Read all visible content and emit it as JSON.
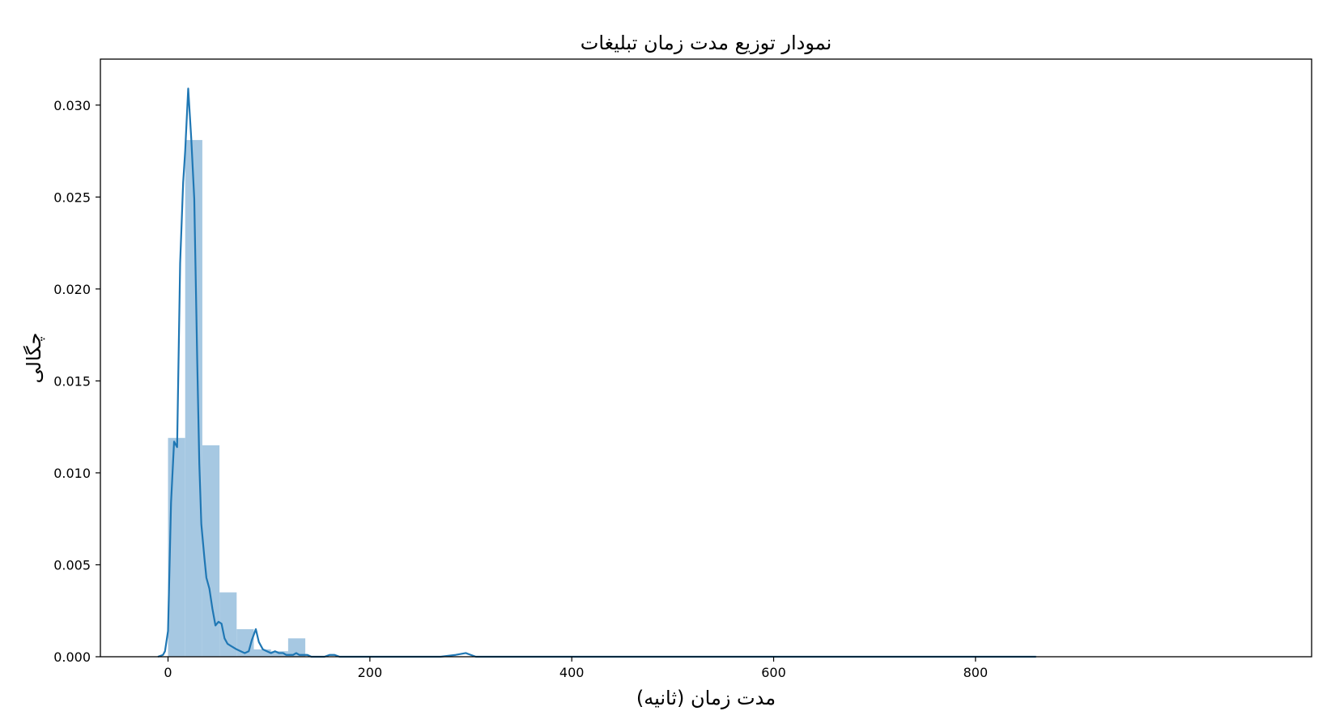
{
  "chart_data": {
    "type": "histogram",
    "title": "نمودار توزیع مدت زمان تبلیغات",
    "xlabel": "مدت زمان (ثانیه)",
    "ylabel": "چگالی",
    "xlim": [
      -67,
      1133
    ],
    "ylim": [
      0,
      0.0325
    ],
    "xticks": [
      0,
      200,
      400,
      600,
      800
    ],
    "yticks": [
      0.0,
      0.005,
      0.01,
      0.015,
      0.02,
      0.025,
      0.03
    ],
    "ytick_labels": [
      "0.000",
      "0.005",
      "0.010",
      "0.015",
      "0.020",
      "0.025",
      "0.030"
    ],
    "xtick_labels": [
      "0",
      "200",
      "400",
      "600",
      "800"
    ],
    "grid": false,
    "colors": {
      "bars": "#a6c8e2",
      "kde": "#1f77b4"
    },
    "histogram": {
      "bin_edges": [
        0,
        17,
        34,
        51,
        68,
        85,
        102,
        119,
        136
      ],
      "density": [
        0.0119,
        0.0281,
        0.0115,
        0.0035,
        0.0015,
        0.0004,
        0.0003,
        0.001
      ]
    },
    "kde": {
      "x": [
        -10,
        -5,
        -3,
        0,
        3,
        6,
        9,
        12,
        15,
        17,
        20,
        23,
        26,
        29,
        31,
        33,
        36,
        38,
        41,
        44,
        47,
        50,
        53,
        56,
        59,
        62,
        65,
        68,
        72,
        76,
        80,
        83,
        87,
        90,
        94,
        98,
        102,
        106,
        110,
        114,
        117,
        120,
        122,
        124,
        127,
        130,
        134,
        138,
        142,
        146,
        150,
        155,
        160,
        165,
        170,
        175,
        178,
        182,
        186,
        190,
        200,
        210,
        230,
        250,
        270,
        285,
        295,
        300,
        305,
        310,
        330,
        350,
        400,
        500,
        600,
        700,
        800,
        860
      ],
      "y": [
        0.0,
        0.0001,
        0.0003,
        0.0014,
        0.0084,
        0.0117,
        0.0114,
        0.0214,
        0.0258,
        0.0275,
        0.0309,
        0.0282,
        0.0249,
        0.0159,
        0.0105,
        0.0072,
        0.0054,
        0.0043,
        0.0037,
        0.0026,
        0.0017,
        0.0019,
        0.0018,
        0.001,
        0.0007,
        0.0006,
        0.0005,
        0.0004,
        0.0003,
        0.0002,
        0.0003,
        0.0009,
        0.0015,
        0.0008,
        0.0004,
        0.0003,
        0.0002,
        0.0003,
        0.0002,
        0.0002,
        0.0001,
        0.0001,
        0.0001,
        0.0001,
        0.0002,
        0.0001,
        0.0001,
        0.0001,
        0.0,
        0.0,
        0.0,
        0.0,
        0.0001,
        0.0001,
        0.0,
        0.0,
        0.0,
        0.0,
        0.0,
        0.0,
        0.0,
        0.0,
        0.0,
        0.0,
        0.0,
        0.0001,
        0.0002,
        0.0001,
        0.0,
        0.0,
        0.0,
        0.0,
        0.0,
        0.0,
        0.0,
        0.0,
        0.0,
        0.0
      ]
    }
  }
}
